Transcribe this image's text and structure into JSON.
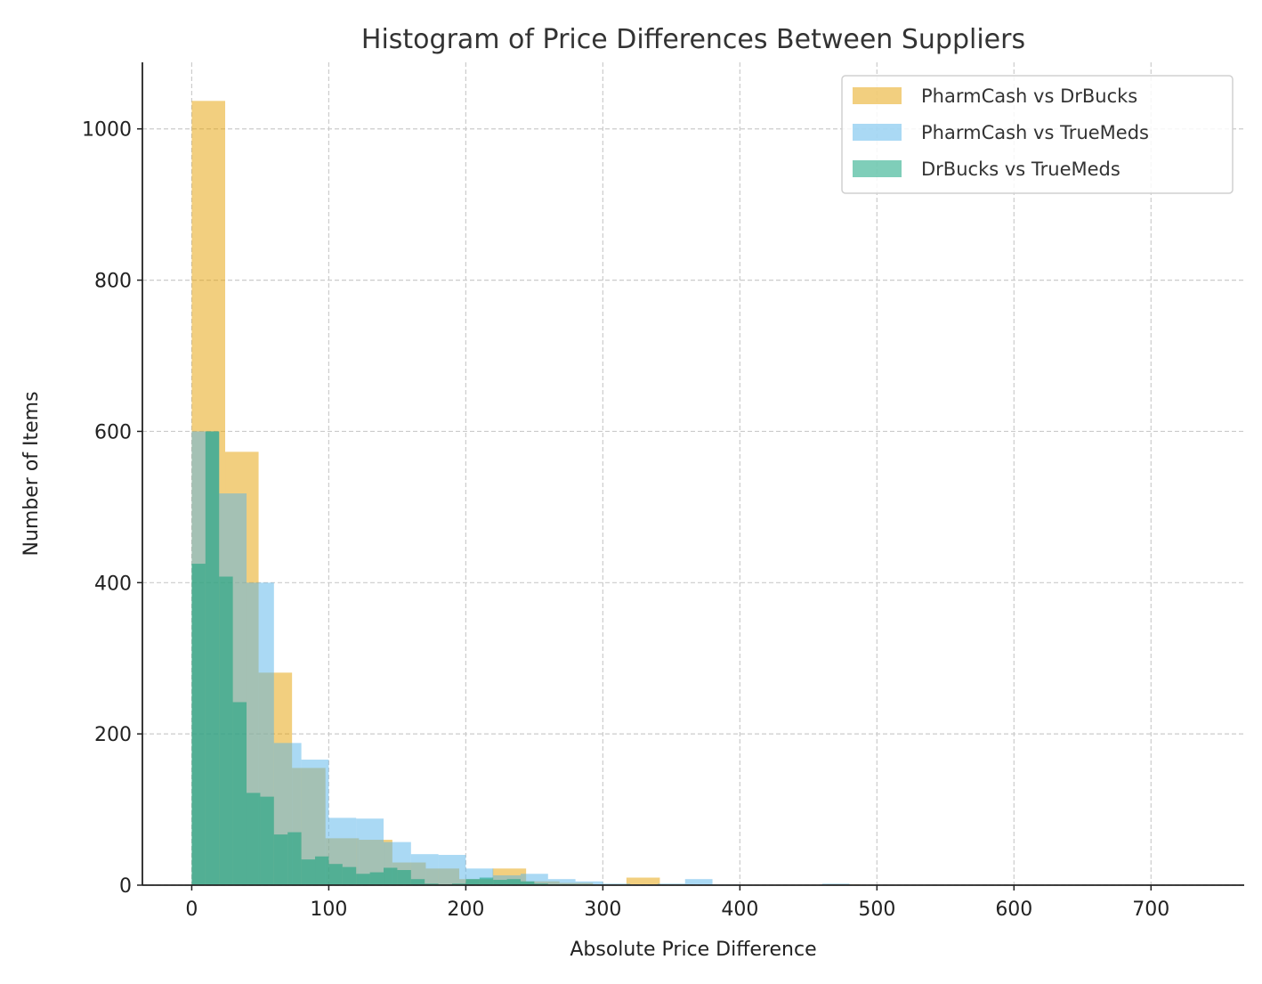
{
  "chart_data": {
    "type": "histogram",
    "title": "Histogram of Price Differences Between Suppliers",
    "xlabel": "Absolute Price Difference",
    "ylabel": "Number of Items",
    "xlim": [
      -36,
      768
    ],
    "ylim": [
      0,
      1088
    ],
    "xticks": [
      0,
      100,
      200,
      300,
      400,
      500,
      600,
      700
    ],
    "yticks": [
      0,
      200,
      400,
      600,
      800,
      1000
    ],
    "grid": true,
    "legend_position": "top-right",
    "series": [
      {
        "name": "PharmCash vs DrBucks",
        "color": "#E69F00",
        "bin_start": 0,
        "bin_width": 24.4,
        "counts": [
          1037,
          573,
          281,
          155,
          62,
          60,
          30,
          22,
          8,
          22,
          5,
          3,
          1,
          10,
          1,
          0,
          0,
          0,
          0,
          1
        ]
      },
      {
        "name": "PharmCash vs TrueMeds",
        "color": "#56B4E9",
        "bin_start": 0,
        "bin_width": 20,
        "counts": [
          600,
          518,
          400,
          188,
          166,
          89,
          88,
          57,
          41,
          40,
          22,
          13,
          15,
          8,
          5,
          2,
          1,
          2,
          8,
          1,
          0,
          0,
          0,
          2
        ]
      },
      {
        "name": "DrBucks vs TrueMeds",
        "color": "#009E73",
        "bin_start": 0,
        "bin_width": 10,
        "counts": [
          425,
          600,
          408,
          242,
          122,
          117,
          67,
          70,
          34,
          38,
          28,
          24,
          15,
          17,
          23,
          20,
          8,
          2,
          1,
          2,
          8,
          10,
          7,
          8,
          5,
          2,
          1,
          1
        ]
      }
    ]
  }
}
